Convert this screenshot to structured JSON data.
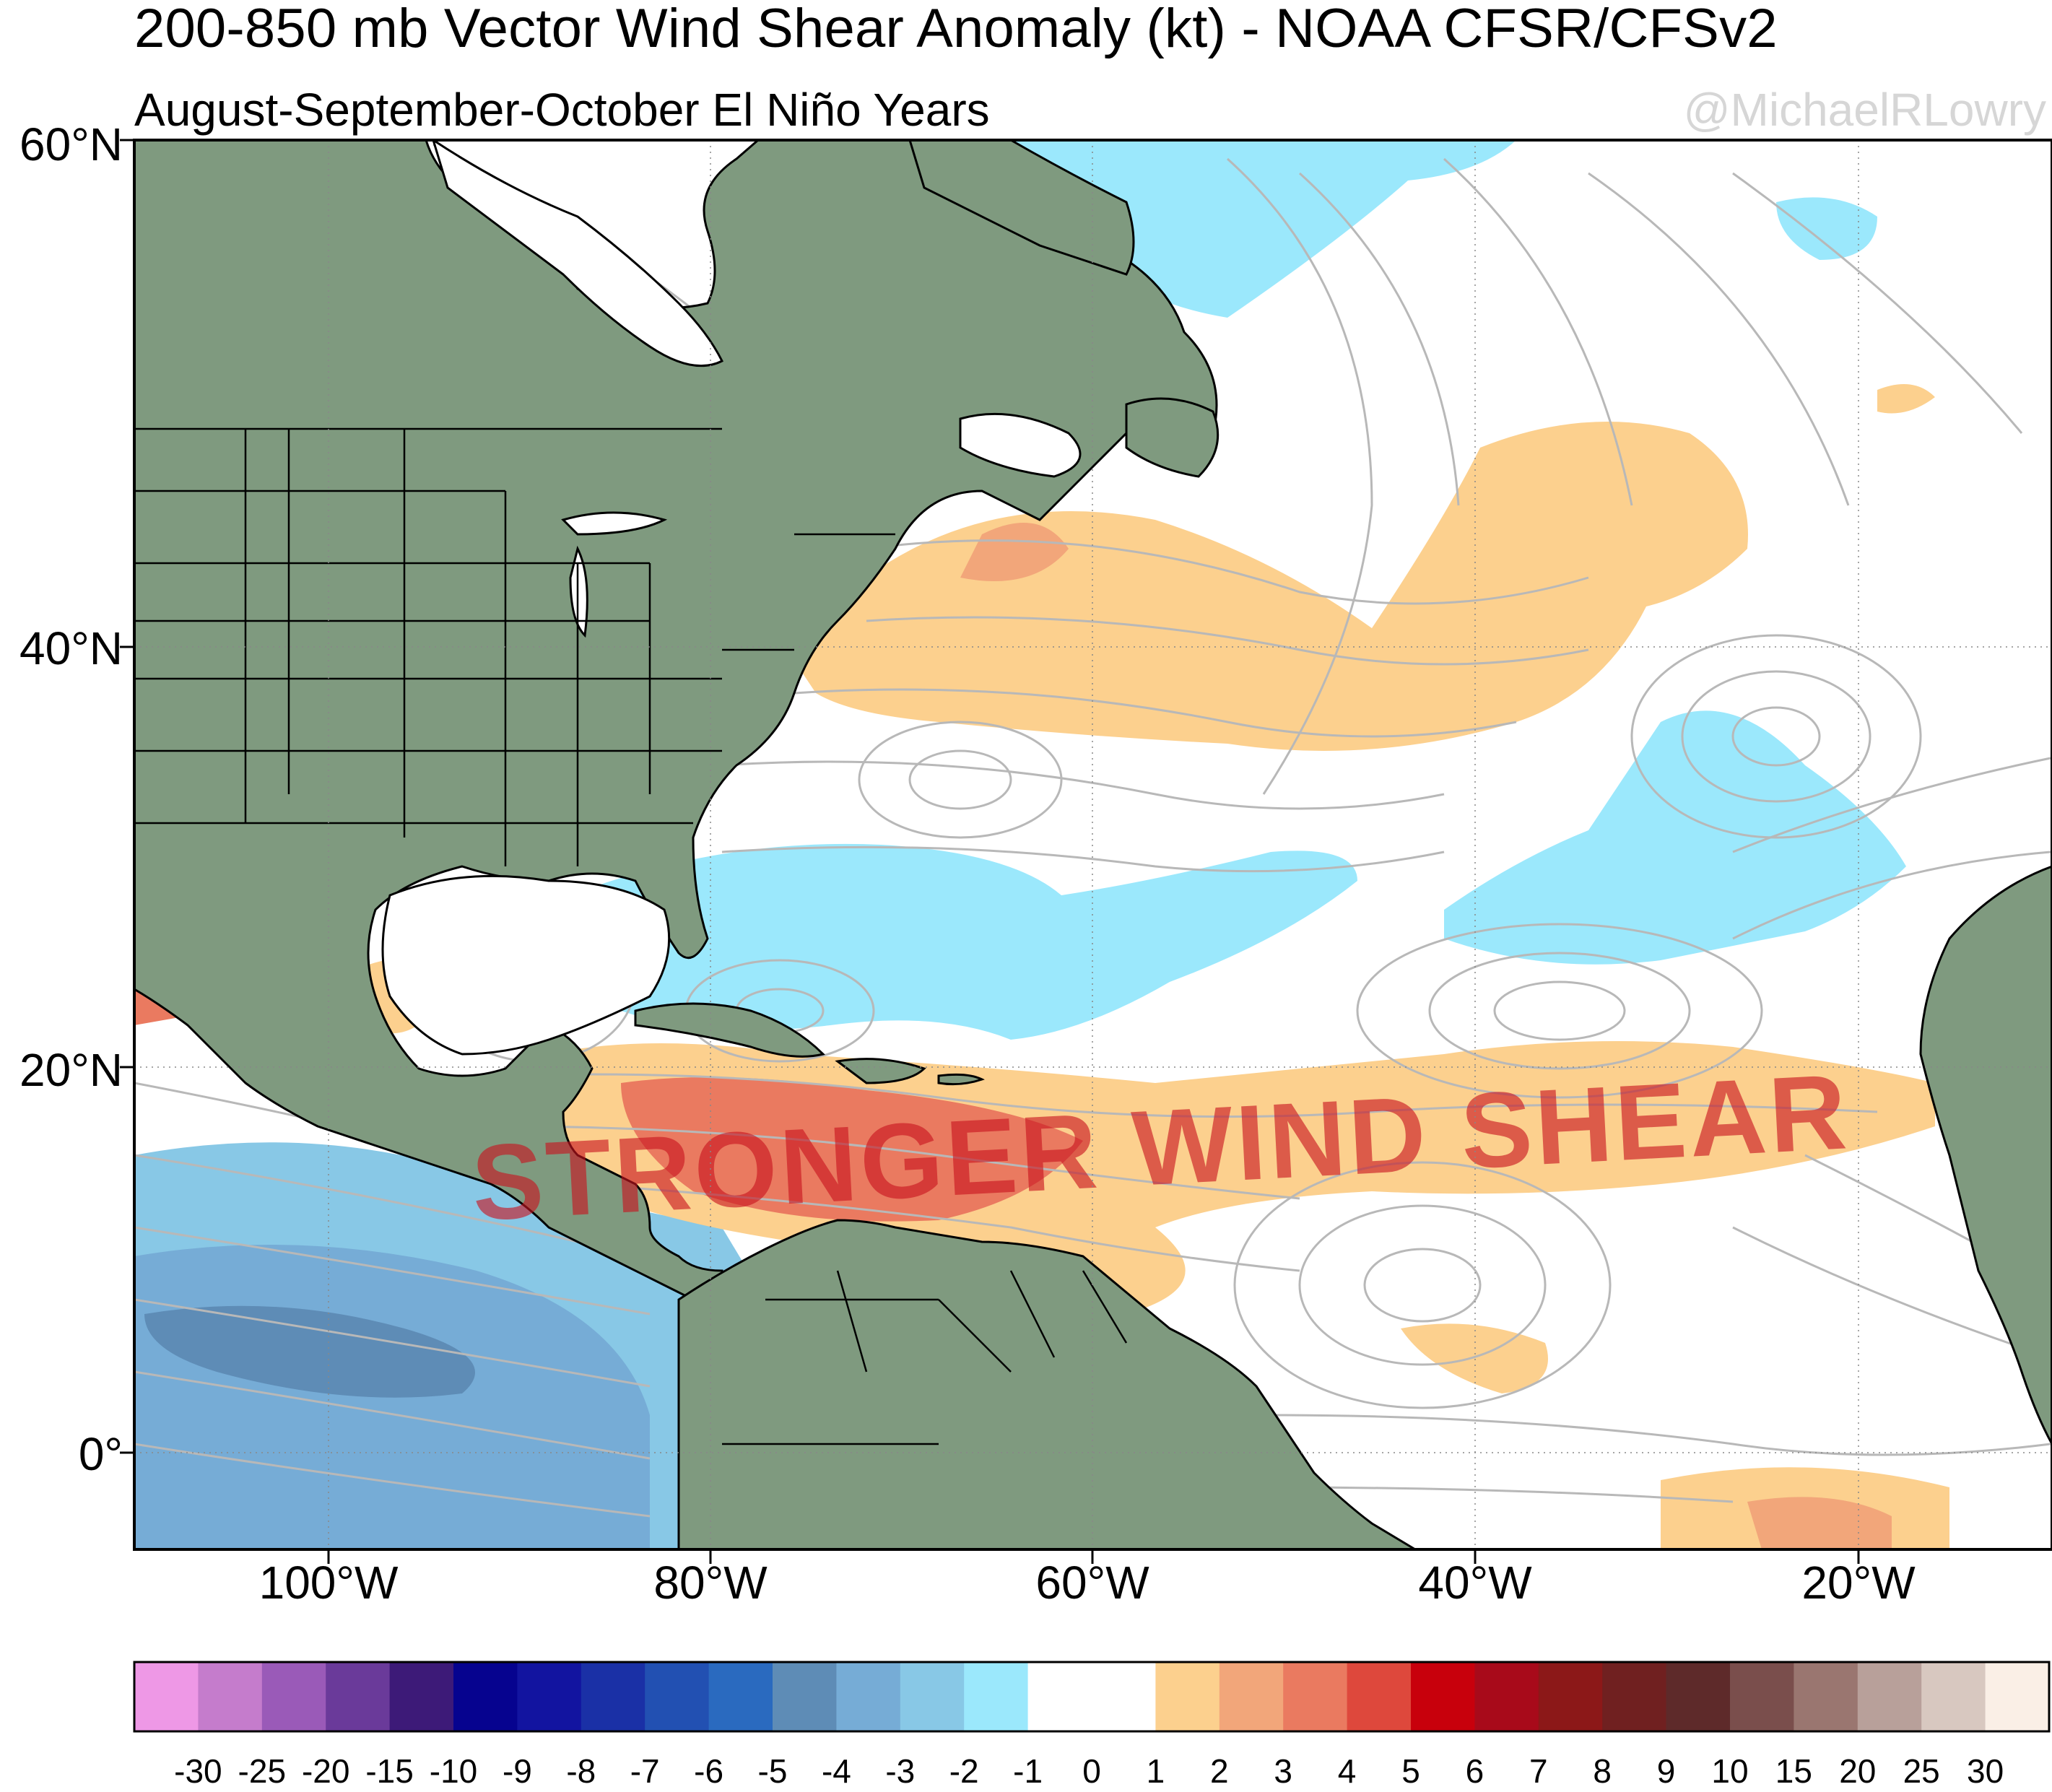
{
  "header": {
    "title": "200-850 mb Vector Wind Shear Anomaly (kt) - NOAA CFSR/CFSv2",
    "subtitle": "August-September-October El Niño Years",
    "credit": "@MichaelRLowry"
  },
  "map": {
    "overlay_text": "STRONGER WIND SHEAR",
    "lat_labels": [
      "60°N",
      "40°N",
      "20°N",
      "0°"
    ],
    "lon_labels": [
      "100°W",
      "80°W",
      "60°W",
      "40°W",
      "20°W"
    ],
    "land_color": "#7f9a7f",
    "ocean_color": "#ffffff",
    "streamline_color": "#b8b8b8"
  },
  "colorbar": {
    "colors": [
      "#ee98e6",
      "#c57ccc",
      "#9a5ab8",
      "#6a3a9a",
      "#3d1a78",
      "#06038f",
      "#1214a0",
      "#1a30a6",
      "#2250b2",
      "#2a6abf",
      "#5e8cb6",
      "#76acd6",
      "#88c8e6",
      "#9be8fc",
      "#ffffff",
      "#ffffff",
      "#fcd08e",
      "#f2a67a",
      "#ea7a60",
      "#de483c",
      "#c8000c",
      "#a80a1a",
      "#8c1818",
      "#702020",
      "#5e2a2a",
      "#7a4e4c",
      "#9a7670",
      "#b8a09a",
      "#d8c8c0",
      "#faefe6"
    ],
    "labels": [
      "-30",
      "-25",
      "-20",
      "-15",
      "-10",
      "-9",
      "-8",
      "-7",
      "-6",
      "-5",
      "-4",
      "-3",
      "-2",
      "-1",
      "0",
      "1",
      "2",
      "3",
      "4",
      "5",
      "6",
      "7",
      "8",
      "9",
      "10",
      "15",
      "20",
      "25",
      "30"
    ]
  }
}
